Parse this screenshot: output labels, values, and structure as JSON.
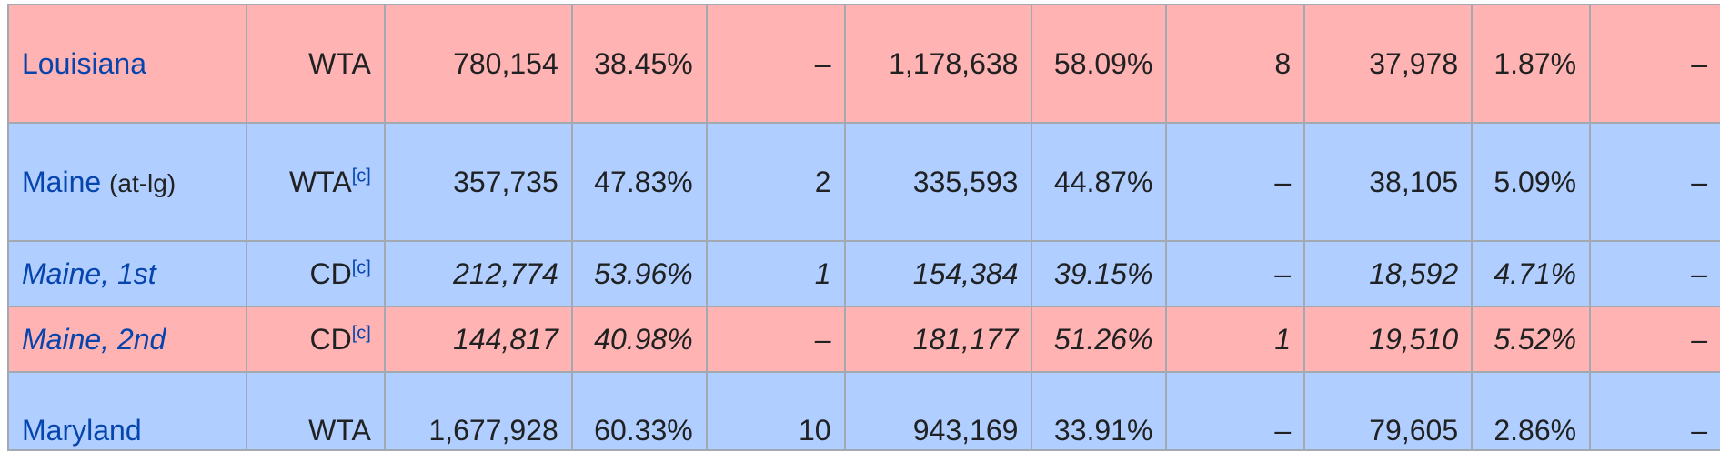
{
  "columns_widths_note": "",
  "rows": [
    {
      "party": "rep",
      "size": "big",
      "state": "Louisiana",
      "note": "",
      "italic": false,
      "method": "WTA",
      "method_fn": "",
      "dem_votes": "780,154",
      "dem_pct": "38.45%",
      "dem_ev": "–",
      "rep_votes": "1,178,638",
      "rep_pct": "58.09%",
      "rep_ev": "8",
      "oth_votes": "37,978",
      "oth_pct": "1.87%",
      "oth_ev": "–"
    },
    {
      "party": "dem",
      "size": "big",
      "state": "Maine",
      "note": "(at-lg)",
      "italic": false,
      "method": "WTA",
      "method_fn": "[c]",
      "dem_votes": "357,735",
      "dem_pct": "47.83%",
      "dem_ev": "2",
      "rep_votes": "335,593",
      "rep_pct": "44.87%",
      "rep_ev": "–",
      "oth_votes": "38,105",
      "oth_pct": "5.09%",
      "oth_ev": "–"
    },
    {
      "party": "dem",
      "size": "small",
      "state": "Maine, 1st",
      "note": "",
      "italic": true,
      "method": "CD",
      "method_fn": "[c]",
      "dem_votes": "212,774",
      "dem_pct": "53.96%",
      "dem_ev": "1",
      "rep_votes": "154,384",
      "rep_pct": "39.15%",
      "rep_ev": "–",
      "oth_votes": "18,592",
      "oth_pct": "4.71%",
      "oth_ev": "–"
    },
    {
      "party": "rep",
      "size": "small",
      "state": "Maine, 2nd",
      "note": "",
      "italic": true,
      "method": "CD",
      "method_fn": "[c]",
      "dem_votes": "144,817",
      "dem_pct": "40.98%",
      "dem_ev": "–",
      "rep_votes": "181,177",
      "rep_pct": "51.26%",
      "rep_ev": "1",
      "oth_votes": "19,510",
      "oth_pct": "5.52%",
      "oth_ev": "–"
    },
    {
      "party": "dem",
      "size": "last",
      "state": "Maryland",
      "note": "",
      "italic": false,
      "method": "WTA",
      "method_fn": "",
      "dem_votes": "1,677,928",
      "dem_pct": "60.33%",
      "dem_ev": "10",
      "rep_votes": "943,169",
      "rep_pct": "33.91%",
      "rep_ev": "–",
      "oth_votes": "79,605",
      "oth_pct": "2.86%",
      "oth_ev": "–"
    }
  ]
}
